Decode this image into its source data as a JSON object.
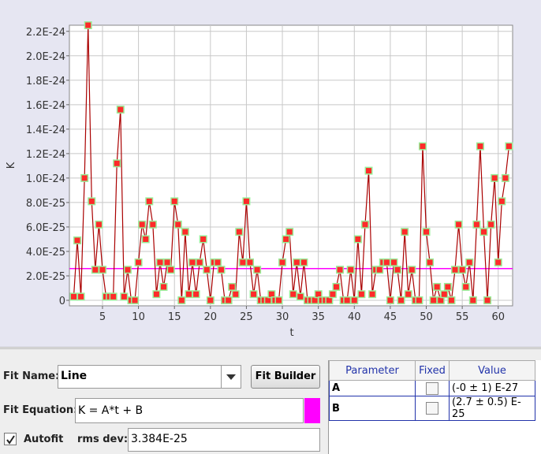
{
  "chart_data": {
    "type": "line",
    "x_label": "t",
    "y_label": "K",
    "x": [
      1,
      1.5,
      2,
      2.5,
      3,
      3.5,
      4,
      4.5,
      5,
      5.5,
      6,
      6.5,
      7,
      7.5,
      8,
      8.5,
      9,
      9.5,
      10,
      10.5,
      11,
      11.5,
      12,
      12.5,
      13,
      13.5,
      14,
      14.5,
      15,
      15.5,
      16,
      16.5,
      17,
      17.5,
      18,
      18.5,
      19,
      19.5,
      20,
      20.5,
      21,
      21.5,
      22,
      22.5,
      23,
      23.5,
      24,
      24.5,
      25,
      25.5,
      26,
      26.5,
      27,
      27.5,
      28,
      28.5,
      29,
      29.5,
      30,
      30.5,
      31,
      31.5,
      32,
      32.5,
      33,
      33.5,
      34,
      34.5,
      35,
      35.5,
      36,
      36.5,
      37,
      37.5,
      38,
      38.5,
      39,
      39.5,
      40,
      40.5,
      41,
      41.5,
      42,
      42.5,
      43,
      43.5,
      44,
      44.5,
      45,
      45.5,
      46,
      46.5,
      47,
      47.5,
      48,
      48.5,
      49,
      49.5,
      50,
      50.5,
      51,
      51.5,
      52,
      52.5,
      53,
      53.5,
      54,
      54.5,
      55,
      55.5,
      56,
      56.5,
      57,
      57.5,
      58,
      58.5,
      59,
      59.5,
      60,
      60.5,
      61,
      61.5
    ],
    "values": [
      3e-26,
      4.9e-25,
      3e-26,
      1e-24,
      2.25e-24,
      8.1e-25,
      2.5e-25,
      6.2e-25,
      2.5e-25,
      3e-26,
      3e-26,
      3e-26,
      1.12e-24,
      1.56e-24,
      3e-26,
      2.5e-25,
      0,
      0,
      3.1e-25,
      6.2e-25,
      5e-25,
      8.1e-25,
      6.2e-25,
      5e-26,
      3.1e-25,
      1.1e-25,
      3.1e-25,
      2.5e-25,
      8.1e-25,
      6.2e-25,
      0,
      5.6e-25,
      5e-26,
      3.1e-25,
      5e-26,
      3.1e-25,
      5e-25,
      2.5e-25,
      0,
      3.1e-25,
      3.1e-25,
      2.5e-25,
      0,
      0,
      1.1e-25,
      5e-26,
      5.6e-25,
      3.1e-25,
      8.1e-25,
      3.1e-25,
      5e-26,
      2.5e-25,
      0,
      0,
      0,
      5e-26,
      0,
      0,
      3.1e-25,
      5e-25,
      5.6e-25,
      5e-26,
      3.1e-25,
      3e-26,
      3.1e-25,
      0,
      0,
      0,
      5e-26,
      0,
      0,
      0,
      5e-26,
      1.1e-25,
      2.5e-25,
      0,
      0,
      2.5e-25,
      0,
      5e-25,
      5e-26,
      6.2e-25,
      1.06e-24,
      5e-26,
      2.5e-25,
      2.5e-25,
      3.1e-25,
      3.1e-25,
      0,
      3.1e-25,
      2.5e-25,
      0,
      5.6e-25,
      5e-26,
      2.5e-25,
      0,
      0,
      1.26e-24,
      5.6e-25,
      3.1e-25,
      0,
      1.1e-25,
      0,
      5e-26,
      1.1e-25,
      0,
      2.5e-25,
      6.2e-25,
      2.5e-25,
      1.1e-25,
      3.1e-25,
      0,
      6.2e-25,
      1.26e-24,
      5.6e-25,
      0,
      6.2e-25,
      1e-24,
      3.1e-25,
      8.1e-25,
      1e-24,
      1.26e-24
    ],
    "color": "#aa0000",
    "marker_color": "#ff2a2a",
    "marker_edge": "#99ee99",
    "fit_line": {
      "x": [
        0.4,
        62
      ],
      "values": [
        2.6e-25,
        2.6e-25
      ],
      "color": "#ff00ff"
    },
    "xlim": [
      0.4,
      62
    ],
    "ylim": [
      -4.5e-26,
      2.25e-24
    ],
    "xticks": [
      5,
      10,
      15,
      20,
      25,
      30,
      35,
      40,
      45,
      50,
      55,
      60
    ],
    "yticks": [
      0,
      {
        "value": 2e-25,
        "label": "2.0E-25"
      },
      {
        "value": 4e-25,
        "label": "4.0E-25"
      },
      {
        "value": 6e-25,
        "label": "6.0E-25"
      },
      {
        "value": 8e-25,
        "label": "8.0E-25"
      },
      {
        "value": 1e-24,
        "label": "1.0E-24"
      },
      {
        "value": 1.2e-24,
        "label": "1.2E-24"
      },
      {
        "value": 1.4e-24,
        "label": "1.4E-24"
      },
      {
        "value": 1.6e-24,
        "label": "1.6E-24"
      },
      {
        "value": 1.8e-24,
        "label": "1.8E-24"
      },
      {
        "value": 2e-24,
        "label": "2.0E-24"
      },
      {
        "value": 2.2e-24,
        "label": "2.2E-24"
      }
    ],
    "grid": true
  },
  "fit_panel": {
    "fit_name_label": "Fit Name:",
    "fit_name": "Line",
    "fit_builder": "Fit Builder",
    "fit_equation_label": "Fit Equation:",
    "fit_equation": "K = A*t + B",
    "equation_color": "#ff00ff",
    "autofit": "Autofit",
    "autofit_checked": true,
    "rms_dev_label": "rms dev:",
    "rms_dev": "3.384E-25"
  },
  "parameters_table": {
    "headers": [
      "Parameter",
      "Fixed",
      "Value"
    ],
    "rows": [
      [
        "A",
        "(-0 ± 1) E-27"
      ],
      [
        "B",
        "(2.7 ± 0.5) E-25"
      ]
    ]
  }
}
